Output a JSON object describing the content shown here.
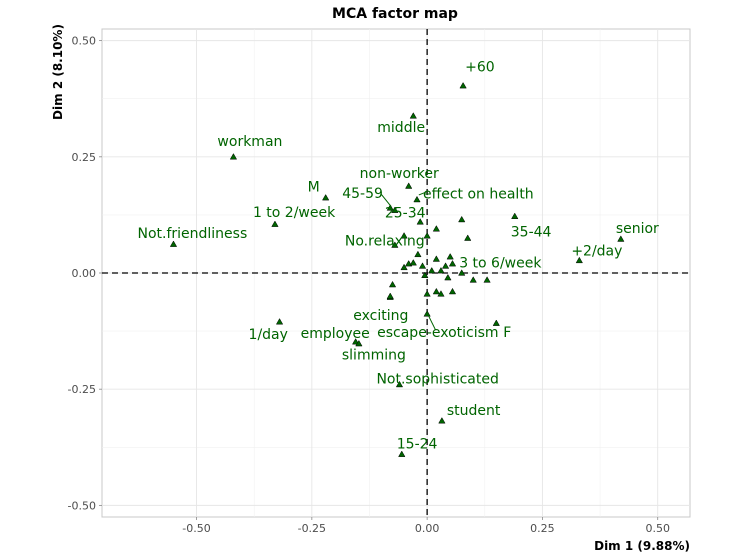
{
  "chart_data": {
    "type": "scatter",
    "title": "MCA factor map",
    "xlabel": "Dim 1 (9.88%)",
    "ylabel": "Dim 2 (8.10%)",
    "xlim": [
      -0.705,
      0.57
    ],
    "ylim": [
      -0.525,
      0.525
    ],
    "xticks": [
      "-0.50",
      "-0.25",
      "0.00",
      "0.25",
      "0.50"
    ],
    "xtick_values": [
      -0.5,
      -0.25,
      0,
      0.25,
      0.5
    ],
    "yticks": [
      "0.50",
      "0.25",
      "0.00",
      "-0.25",
      "-0.50"
    ],
    "ytick_values": [
      0.5,
      0.25,
      0,
      -0.25,
      -0.5
    ],
    "grid": true,
    "background": "white",
    "point_color": "#006400",
    "labeled_points": [
      {
        "label": "+60",
        "x": 0.078,
        "y": 0.403
      },
      {
        "label": "middle",
        "x": -0.03,
        "y": 0.338
      },
      {
        "label": "workman",
        "x": -0.42,
        "y": 0.25
      },
      {
        "label": "non-worker",
        "x": -0.04,
        "y": 0.187
      },
      {
        "label": "M",
        "x": -0.22,
        "y": 0.162
      },
      {
        "label": "effect on health",
        "x": -0.022,
        "y": 0.158
      },
      {
        "label": "45-59",
        "x": -0.08,
        "y": 0.14
      },
      {
        "label": "25-34",
        "x": -0.07,
        "y": 0.135
      },
      {
        "label": "1 to 2/week",
        "x": -0.33,
        "y": 0.105
      },
      {
        "label": "35-44",
        "x": 0.19,
        "y": 0.122
      },
      {
        "label": "senior",
        "x": 0.42,
        "y": 0.073
      },
      {
        "label": "Not.friendliness",
        "x": -0.55,
        "y": 0.062
      },
      {
        "label": "No.relaxing",
        "x": -0.02,
        "y": 0.04
      },
      {
        "label": "3 to 6/week",
        "x": 0.05,
        "y": 0.035
      },
      {
        "label": "+2/day",
        "x": 0.33,
        "y": 0.027
      },
      {
        "label": "exciting",
        "x": -0.08,
        "y": -0.05
      },
      {
        "label": "1/day",
        "x": -0.32,
        "y": -0.105
      },
      {
        "label": "F",
        "x": 0.15,
        "y": -0.108
      },
      {
        "label": "escape-exoticism",
        "x": 0.0,
        "y": -0.088
      },
      {
        "label": "employee",
        "x": -0.155,
        "y": -0.148
      },
      {
        "label": "slimming",
        "x": -0.148,
        "y": -0.152
      },
      {
        "label": "Not.sophisticated",
        "x": -0.06,
        "y": -0.24
      },
      {
        "label": "student",
        "x": 0.032,
        "y": -0.318
      },
      {
        "label": "15-24",
        "x": -0.055,
        "y": -0.39
      }
    ],
    "unlabeled_points": [
      {
        "x": -0.05,
        "y": 0.08
      },
      {
        "x": -0.015,
        "y": 0.11
      },
      {
        "x": 0.0,
        "y": 0.08
      },
      {
        "x": 0.02,
        "y": 0.095
      },
      {
        "x": 0.075,
        "y": 0.115
      },
      {
        "x": 0.088,
        "y": 0.075
      },
      {
        "x": -0.07,
        "y": 0.06
      },
      {
        "x": -0.04,
        "y": 0.02
      },
      {
        "x": -0.03,
        "y": 0.022
      },
      {
        "x": -0.05,
        "y": 0.012
      },
      {
        "x": -0.01,
        "y": 0.015
      },
      {
        "x": 0.02,
        "y": 0.03
      },
      {
        "x": 0.04,
        "y": 0.015
      },
      {
        "x": 0.055,
        "y": 0.02
      },
      {
        "x": 0.075,
        "y": 0.0
      },
      {
        "x": 0.01,
        "y": 0.005
      },
      {
        "x": 0.03,
        "y": 0.005
      },
      {
        "x": -0.005,
        "y": -0.005
      },
      {
        "x": 0.045,
        "y": -0.01
      },
      {
        "x": 0.1,
        "y": -0.015
      },
      {
        "x": 0.13,
        "y": -0.015
      },
      {
        "x": -0.075,
        "y": -0.025
      },
      {
        "x": 0.02,
        "y": -0.04
      },
      {
        "x": 0.0,
        "y": -0.045
      },
      {
        "x": 0.055,
        "y": -0.04
      },
      {
        "x": 0.03,
        "y": -0.045
      },
      {
        "x": -0.08,
        "y": -0.052
      }
    ]
  }
}
